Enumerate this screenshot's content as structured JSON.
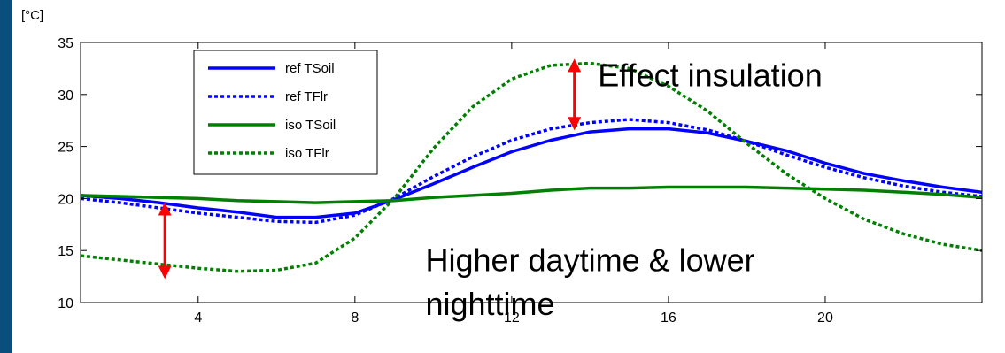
{
  "chart_data": {
    "type": "line",
    "unit_label": "[°C]",
    "xlim": [
      1,
      24
    ],
    "ylim": [
      10,
      35
    ],
    "xticks": [
      4,
      8,
      12,
      16,
      20
    ],
    "yticks": [
      10,
      15,
      20,
      25,
      30,
      35
    ],
    "legend_position": "top-left",
    "series": [
      {
        "name": "ref TSoil",
        "color": "#0000ff",
        "dash": "solid",
        "x": [
          1,
          2,
          3,
          4,
          5,
          6,
          7,
          8,
          9,
          10,
          11,
          12,
          13,
          14,
          15,
          16,
          17,
          18,
          19,
          20,
          21,
          22,
          23,
          24
        ],
        "y": [
          20.3,
          20.0,
          19.6,
          19.1,
          18.7,
          18.2,
          18.2,
          18.6,
          19.9,
          21.4,
          23.0,
          24.5,
          25.6,
          26.4,
          26.7,
          26.7,
          26.3,
          25.5,
          24.6,
          23.4,
          22.4,
          21.7,
          21.1,
          20.6
        ]
      },
      {
        "name": "ref TFlr",
        "color": "#0000ff",
        "dash": "dotted",
        "x": [
          1,
          2,
          3,
          4,
          5,
          6,
          7,
          8,
          9,
          10,
          11,
          12,
          13,
          14,
          15,
          16,
          17,
          18,
          19,
          20,
          21,
          22,
          23,
          24
        ],
        "y": [
          20.0,
          19.6,
          19.1,
          18.6,
          18.2,
          17.8,
          17.7,
          18.4,
          20.0,
          22.1,
          24.0,
          25.6,
          26.7,
          27.3,
          27.6,
          27.3,
          26.6,
          25.5,
          24.2,
          23.0,
          22.0,
          21.2,
          20.6,
          20.2
        ]
      },
      {
        "name": "iso TSoil",
        "color": "#008000",
        "dash": "solid",
        "x": [
          1,
          2,
          3,
          4,
          5,
          6,
          7,
          8,
          9,
          10,
          11,
          12,
          13,
          14,
          15,
          16,
          17,
          18,
          19,
          20,
          21,
          22,
          23,
          24
        ],
        "y": [
          20.3,
          20.2,
          20.1,
          20.0,
          19.8,
          19.7,
          19.6,
          19.7,
          19.8,
          20.1,
          20.3,
          20.5,
          20.8,
          21.0,
          21.0,
          21.1,
          21.1,
          21.1,
          21.0,
          20.9,
          20.8,
          20.6,
          20.4,
          20.1
        ]
      },
      {
        "name": "iso TFlr",
        "color": "#008000",
        "dash": "dotted",
        "x": [
          1,
          2,
          3,
          4,
          5,
          6,
          7,
          8,
          9,
          10,
          11,
          12,
          13,
          14,
          15,
          16,
          17,
          18,
          19,
          20,
          21,
          22,
          23,
          24
        ],
        "y": [
          14.5,
          14.1,
          13.7,
          13.3,
          13.0,
          13.1,
          13.8,
          16.2,
          20.0,
          24.8,
          28.8,
          31.5,
          32.8,
          33.0,
          32.5,
          30.8,
          28.4,
          25.3,
          22.4,
          20.0,
          18.0,
          16.6,
          15.6,
          15.0
        ]
      }
    ],
    "annotations": [
      {
        "text": "Effect insulation",
        "x": 14.2,
        "y": 30.8
      },
      {
        "text": "Higher daytime & lower",
        "x": 9.8,
        "y": 13.0
      },
      {
        "text": "nighttime",
        "x": 9.8,
        "y": 8.8
      }
    ],
    "arrows": [
      {
        "x": 3.15,
        "y1": 19.0,
        "y2": 12.9,
        "color": "#ff0000"
      },
      {
        "x": 13.6,
        "y1": 32.8,
        "y2": 27.2,
        "color": "#ff0000"
      }
    ]
  }
}
